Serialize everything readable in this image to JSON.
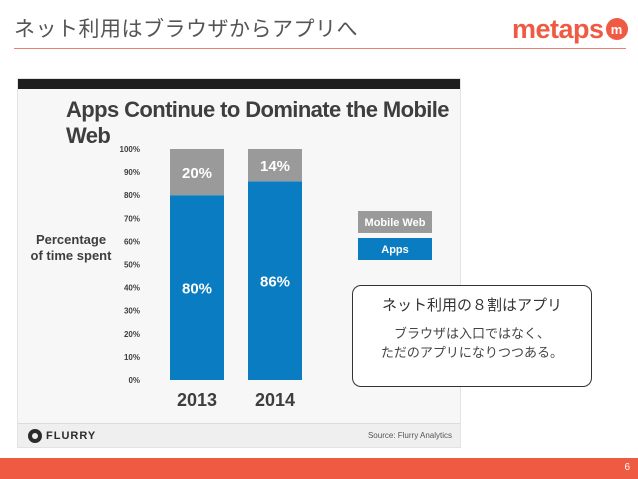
{
  "slide": {
    "title": "ネット利用はブラウザからアプリへ",
    "page_number": "6"
  },
  "logo": {
    "text": "metaps",
    "badge": "m",
    "color": "#ef5a43"
  },
  "chart_data": {
    "type": "bar",
    "stacked": true,
    "title": "Apps Continue to Dominate the Mobile Web",
    "ylabel": "Percentage of time spent",
    "ylabel_lines": [
      "Percentage",
      "of time spent"
    ],
    "categories": [
      "2013",
      "2014"
    ],
    "series": [
      {
        "name": "Apps",
        "color": "#0a7cc1",
        "values": [
          80,
          86
        ],
        "labels": [
          "80%",
          "86%"
        ]
      },
      {
        "name": "Mobile Web",
        "color": "#9a9a9a",
        "values": [
          20,
          14
        ],
        "labels": [
          "20%",
          "14%"
        ]
      }
    ],
    "y_ticks": [
      "0%",
      "10%",
      "20%",
      "30%",
      "40%",
      "50%",
      "60%",
      "70%",
      "80%",
      "90%",
      "100%"
    ],
    "ylim": [
      0,
      100
    ],
    "grid": false,
    "legend_position": "right",
    "legend": [
      {
        "label": "Mobile Web",
        "color": "#9a9a9a"
      },
      {
        "label": "Apps",
        "color": "#0a7cc1"
      }
    ],
    "source": "Source: Flurry Analytics",
    "brand": "FLURRY"
  },
  "callout": {
    "heading": "ネット利用の８割はアプリ",
    "line1": "ブラウザは入口ではなく、",
    "line2": "ただのアプリになりつつある。"
  }
}
